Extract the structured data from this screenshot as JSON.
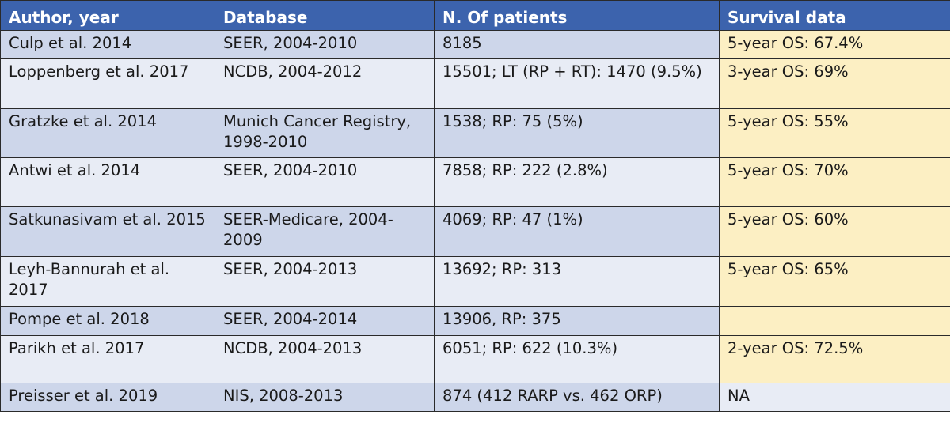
{
  "table": {
    "headers": [
      "Author, year",
      "Database",
      "N. Of patients",
      "Survival data"
    ],
    "rows": [
      [
        "Culp et al. 2014",
        "SEER, 2004-2010",
        "8185",
        "5-year OS: 67.4%"
      ],
      [
        "Loppenberg et al. 2017",
        "NCDB, 2004-2012",
        "15501; LT (RP + RT): 1470 (9.5%)",
        "3-year OS: 69%"
      ],
      [
        "Gratzke et al. 2014",
        "Munich Cancer Registry, 1998-2010",
        "1538; RP: 75 (5%)",
        "5-year OS: 55%"
      ],
      [
        "Antwi et al. 2014",
        "SEER, 2004-2010",
        "7858; RP: 222 (2.8%)",
        "5-year OS: 70%"
      ],
      [
        "Satkunasivam et al. 2015",
        "SEER-Medicare, 2004-2009",
        "4069; RP: 47 (1%)",
        "5-year OS: 60%"
      ],
      [
        "Leyh-Bannurah et al. 2017",
        "SEER, 2004-2013",
        "13692; RP: 313",
        "5-year OS: 65%"
      ],
      [
        "Pompe et al. 2018",
        "SEER, 2004-2014",
        "13906, RP: 375",
        ""
      ],
      [
        "Parikh et al. 2017",
        "NCDB, 2004-2013",
        "6051; RP: 622 (10.3%)",
        "2-year OS: 72.5%"
      ],
      [
        "Preisser et al. 2019",
        "NIS, 2008-2013",
        "874 (412 RARP vs. 462 ORP)",
        "NA"
      ]
    ]
  },
  "colors": {
    "header": "#3c63ad",
    "row_dark": "#cdd6ea",
    "row_light": "#e8ecf5",
    "survival_highlight": "#fcefc3"
  }
}
